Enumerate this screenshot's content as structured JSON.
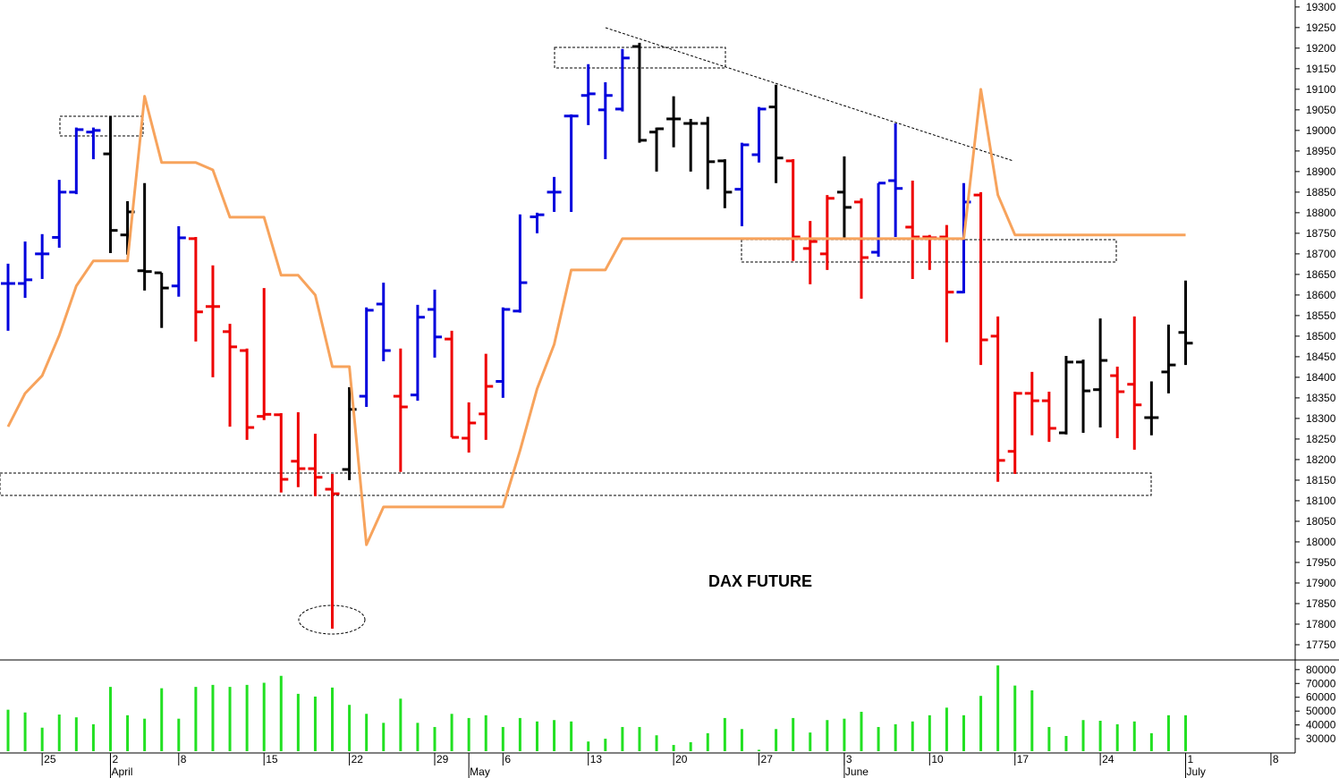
{
  "chart_data": {
    "type": "ohlc",
    "title": "DAX FUTURE",
    "categories": [
      null,
      null,
      "25",
      null,
      null,
      null,
      "2",
      null,
      null,
      null,
      "8",
      null,
      null,
      null,
      null,
      "15",
      null,
      null,
      null,
      null,
      "22",
      null,
      null,
      null,
      null,
      "29",
      null,
      null,
      null,
      "6",
      null,
      null,
      null,
      null,
      "13",
      null,
      null,
      null,
      null,
      "20",
      null,
      null,
      null,
      null,
      "27",
      null,
      null,
      null,
      null,
      "3",
      null,
      null,
      null,
      null,
      "10",
      null,
      null,
      null,
      null,
      "17",
      null,
      null,
      null,
      null,
      "24",
      null,
      null,
      null,
      null,
      "1",
      null,
      null,
      null,
      null,
      "8"
    ],
    "months": [
      null,
      null,
      null,
      null,
      null,
      null,
      "April",
      null,
      null,
      null,
      null,
      null,
      null,
      null,
      null,
      null,
      null,
      null,
      null,
      null,
      null,
      null,
      null,
      null,
      null,
      null,
      null,
      "May",
      null,
      null,
      null,
      null,
      null,
      null,
      null,
      null,
      null,
      null,
      null,
      null,
      null,
      null,
      null,
      null,
      null,
      null,
      null,
      null,
      null,
      "June",
      null,
      null,
      null,
      null,
      null,
      null,
      null,
      null,
      null,
      null,
      null,
      null,
      null,
      null,
      null,
      null,
      null,
      null,
      null,
      "July",
      null,
      null,
      null,
      null,
      null
    ],
    "open": [
      18628,
      18628,
      18700,
      18740,
      18850,
      18996,
      18943,
      18746,
      18659,
      18654,
      18622,
      18737,
      18572,
      18511,
      18465,
      18305,
      18309,
      18196,
      18178,
      18128,
      18176,
      18354,
      18578,
      18354,
      18357,
      18565,
      18493,
      18252,
      18311,
      18390,
      18561,
      18790,
      18850,
      19035,
      19085,
      19050,
      19052,
      19204,
      18996,
      19028,
      19017,
      19017,
      18926,
      18857,
      18941,
      19057,
      18926,
      18713,
      18700,
      18850,
      18826,
      18704,
      18878,
      18765,
      18741,
      18741,
      18607,
      18843,
      18500,
      18220,
      18361,
      18343,
      18265,
      18437,
      18370,
      18404,
      18383,
      18302,
      18413,
      18509,
      null,
      null,
      null,
      null,
      null
    ],
    "high": [
      18676,
      18730,
      18748,
      18880,
      19007,
      19007,
      19035,
      18828,
      18872,
      18654,
      18767,
      18741,
      18672,
      18530,
      18470,
      18617,
      18313,
      18315,
      18263,
      18165,
      18376,
      18570,
      18630,
      18470,
      18576,
      18613,
      18513,
      18339,
      18457,
      18570,
      18796,
      18800,
      18887,
      19039,
      19161,
      19117,
      19198,
      19213,
      19007,
      19083,
      19028,
      19033,
      18930,
      18970,
      19057,
      19111,
      18930,
      18780,
      18843,
      18937,
      18835,
      18872,
      19017,
      18878,
      18746,
      18770,
      18872,
      18850,
      18548,
      18365,
      18413,
      18365,
      18452,
      18443,
      18543,
      18426,
      18548,
      18390,
      18528,
      18635,
      null,
      null,
      null,
      null,
      null
    ],
    "low": [
      18513,
      18593,
      18639,
      18715,
      18845,
      18930,
      18702,
      18698,
      18611,
      18520,
      18596,
      18487,
      18400,
      18280,
      18248,
      18296,
      18120,
      18133,
      18111,
      17789,
      18150,
      18328,
      18439,
      18170,
      18343,
      18448,
      18254,
      18217,
      18248,
      18350,
      18557,
      18750,
      18802,
      18802,
      19013,
      18930,
      19046,
      18970,
      18900,
      18959,
      18900,
      18857,
      18811,
      18767,
      18922,
      18872,
      18683,
      18626,
      18661,
      18735,
      18591,
      18693,
      18741,
      18639,
      18661,
      18485,
      18604,
      18430,
      18146,
      18165,
      18259,
      18243,
      18261,
      18265,
      18278,
      18252,
      18224,
      18259,
      18361,
      18430,
      null,
      null,
      null,
      null,
      null
    ],
    "close": [
      18628,
      18637,
      18700,
      18850,
      19002,
      19000,
      18757,
      18802,
      18657,
      18617,
      18739,
      18559,
      18572,
      18474,
      18278,
      18310,
      18152,
      18178,
      18157,
      18117,
      18322,
      18563,
      18465,
      18328,
      18546,
      18498,
      18254,
      18289,
      18378,
      18565,
      18630,
      18795,
      18850,
      19035,
      19089,
      19085,
      19176,
      18976,
      19004,
      19028,
      19017,
      18924,
      18850,
      18965,
      19052,
      18933,
      18741,
      18730,
      18835,
      18813,
      18691,
      18872,
      18859,
      18741,
      18739,
      18607,
      18826,
      18491,
      18198,
      18361,
      18343,
      18276,
      18437,
      18367,
      18441,
      18365,
      18333,
      18302,
      18430,
      18483,
      null,
      null,
      null,
      null,
      null
    ],
    "colors": [
      "#00d",
      "#00d",
      "#00d",
      "#00d",
      "#00d",
      "#00d",
      "#000",
      "#000",
      "#000",
      "#000",
      "#00d",
      "#e00",
      "#e00",
      "#e00",
      "#e00",
      "#e00",
      "#e00",
      "#e00",
      "#e00",
      "#e00",
      "#000",
      "#00d",
      "#00d",
      "#e00",
      "#00d",
      "#00d",
      "#e00",
      "#e00",
      "#e00",
      "#00d",
      "#00d",
      "#00d",
      "#00d",
      "#00d",
      "#00d",
      "#00d",
      "#00d",
      "#000",
      "#000",
      "#000",
      "#000",
      "#000",
      "#000",
      "#00d",
      "#00d",
      "#000",
      "#e00",
      "#e00",
      "#e00",
      "#000",
      "#e00",
      "#00d",
      "#00d",
      "#e00",
      "#e00",
      "#e00",
      "#00d",
      "#e00",
      "#e00",
      "#e00",
      "#e00",
      "#e00",
      "#000",
      "#000",
      "#000",
      "#e00",
      "#e00",
      "#000",
      "#000",
      "#000",
      null,
      null,
      null,
      null,
      null
    ],
    "overlay": {
      "color": "#f7a35c",
      "values": [
        18280,
        18361,
        18404,
        18502,
        18622,
        18683,
        18683,
        18683,
        19083,
        18922,
        18922,
        18922,
        18904,
        18789,
        18789,
        18789,
        18648,
        18648,
        18600,
        18426,
        18426,
        17993,
        18085,
        18085,
        18085,
        18085,
        18085,
        18085,
        18085,
        18085,
        18222,
        18372,
        18480,
        18661,
        18661,
        18661,
        18737,
        18737,
        18737,
        18737,
        18737,
        18737,
        18737,
        18737,
        18737,
        18737,
        18737,
        18737,
        18737,
        18737,
        18737,
        18737,
        18737,
        18737,
        18737,
        18737,
        18737,
        19100,
        18843,
        18746,
        18746,
        18746,
        18746,
        18746,
        18746,
        18746,
        18746,
        18746,
        18746,
        18746,
        null,
        null,
        null,
        null,
        null
      ]
    },
    "ylim": [
      17713,
      19317
    ],
    "yticks": [
      17750,
      17800,
      17850,
      17900,
      17950,
      18000,
      18050,
      18100,
      18150,
      18200,
      18250,
      18300,
      18350,
      18400,
      18450,
      18500,
      18550,
      18600,
      18650,
      18700,
      18750,
      18800,
      18850,
      18900,
      18950,
      19000,
      19050,
      19100,
      19150,
      19200,
      19250,
      19300
    ],
    "volume": {
      "color": "#22e022",
      "values": [
        51000,
        49000,
        38000,
        47500,
        45500,
        40500,
        67500,
        47000,
        44500,
        66500,
        44500,
        67500,
        69000,
        67500,
        69000,
        70500,
        75500,
        62500,
        60500,
        67000,
        54500,
        48000,
        41500,
        59000,
        41500,
        38500,
        48000,
        45000,
        47000,
        38500,
        45000,
        42500,
        43500,
        42500,
        28000,
        30000,
        38500,
        38500,
        32500,
        25500,
        27500,
        34000,
        45000,
        37000,
        22000,
        37000,
        45000,
        34500,
        43500,
        44500,
        49500,
        38500,
        40500,
        42500,
        47000,
        52500,
        47000,
        61000,
        83000,
        68500,
        65000,
        38500,
        32000,
        43500,
        43000,
        40500,
        42500,
        34000,
        47000,
        47000,
        null,
        null,
        null,
        null,
        null
      ],
      "ylim": [
        21000,
        87000
      ],
      "yticks": [
        30000,
        40000,
        50000,
        60000,
        70000,
        80000
      ]
    }
  }
}
